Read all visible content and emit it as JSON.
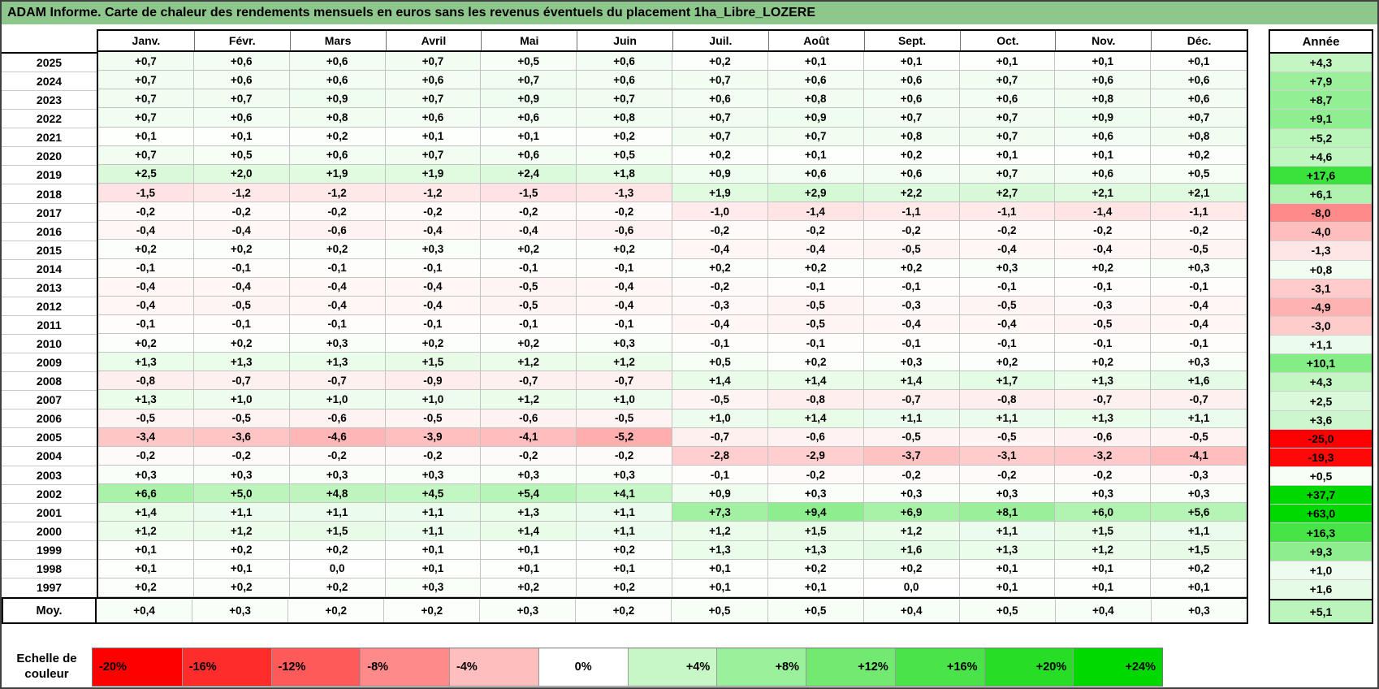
{
  "title": "ADAM Informe. Carte de chaleur des rendements mensuels en euros sans les revenus éventuels du placement 1ha_Libre_LOZERE",
  "annee_header": "Année",
  "legend": {
    "label_line1": "Echelle de",
    "label_line2": "couleur",
    "stops": [
      "-20%",
      "-16%",
      "-12%",
      "-8%",
      "-4%",
      "0%",
      "+4%",
      "+8%",
      "+12%",
      "+16%",
      "+20%",
      "+24%"
    ]
  },
  "colors": {
    "title_bg": "#8DC78B",
    "heat_negative_max": "#FF0000",
    "heat_zero": "#FFFFFF",
    "heat_positive_max": "#00D900"
  },
  "chart_data": {
    "type": "heatmap",
    "title": "ADAM Informe. Carte de chaleur des rendements mensuels en euros sans les revenus éventuels du placement 1ha_Libre_LOZERE",
    "columns": [
      "Janv.",
      "Févr.",
      "Mars",
      "Avril",
      "Mai",
      "Juin",
      "Juil.",
      "Août",
      "Sept.",
      "Oct.",
      "Nov.",
      "Déc."
    ],
    "annual_column_label": "Année",
    "rows": [
      {
        "year": "2025",
        "values": [
          "+0,7",
          "+0,6",
          "+0,6",
          "+0,7",
          "+0,5",
          "+0,6",
          "+0,2",
          "+0,1",
          "+0,1",
          "+0,1",
          "+0,1",
          "+0,1"
        ],
        "annual": "+4,3"
      },
      {
        "year": "2024",
        "values": [
          "+0,7",
          "+0,6",
          "+0,6",
          "+0,6",
          "+0,7",
          "+0,6",
          "+0,7",
          "+0,6",
          "+0,6",
          "+0,7",
          "+0,6",
          "+0,6"
        ],
        "annual": "+7,9"
      },
      {
        "year": "2023",
        "values": [
          "+0,7",
          "+0,7",
          "+0,9",
          "+0,7",
          "+0,9",
          "+0,7",
          "+0,6",
          "+0,8",
          "+0,6",
          "+0,6",
          "+0,8",
          "+0,6"
        ],
        "annual": "+8,7"
      },
      {
        "year": "2022",
        "values": [
          "+0,7",
          "+0,6",
          "+0,8",
          "+0,6",
          "+0,6",
          "+0,8",
          "+0,7",
          "+0,9",
          "+0,7",
          "+0,7",
          "+0,9",
          "+0,7"
        ],
        "annual": "+9,1"
      },
      {
        "year": "2021",
        "values": [
          "+0,1",
          "+0,1",
          "+0,2",
          "+0,1",
          "+0,1",
          "+0,2",
          "+0,7",
          "+0,7",
          "+0,8",
          "+0,7",
          "+0,6",
          "+0,8"
        ],
        "annual": "+5,2"
      },
      {
        "year": "2020",
        "values": [
          "+0,7",
          "+0,5",
          "+0,6",
          "+0,7",
          "+0,6",
          "+0,5",
          "+0,2",
          "+0,1",
          "+0,2",
          "+0,1",
          "+0,1",
          "+0,2"
        ],
        "annual": "+4,6"
      },
      {
        "year": "2019",
        "values": [
          "+2,5",
          "+2,0",
          "+1,9",
          "+1,9",
          "+2,4",
          "+1,8",
          "+0,9",
          "+0,6",
          "+0,6",
          "+0,7",
          "+0,6",
          "+0,5"
        ],
        "annual": "+17,6"
      },
      {
        "year": "2018",
        "values": [
          "-1,5",
          "-1,2",
          "-1,2",
          "-1,2",
          "-1,5",
          "-1,3",
          "+1,9",
          "+2,9",
          "+2,2",
          "+2,7",
          "+2,1",
          "+2,1"
        ],
        "annual": "+6,1"
      },
      {
        "year": "2017",
        "values": [
          "-0,2",
          "-0,2",
          "-0,2",
          "-0,2",
          "-0,2",
          "-0,2",
          "-1,0",
          "-1,4",
          "-1,1",
          "-1,1",
          "-1,4",
          "-1,1"
        ],
        "annual": "-8,0"
      },
      {
        "year": "2016",
        "values": [
          "-0,4",
          "-0,4",
          "-0,6",
          "-0,4",
          "-0,4",
          "-0,6",
          "-0,2",
          "-0,2",
          "-0,2",
          "-0,2",
          "-0,2",
          "-0,2"
        ],
        "annual": "-4,0"
      },
      {
        "year": "2015",
        "values": [
          "+0,2",
          "+0,2",
          "+0,2",
          "+0,3",
          "+0,2",
          "+0,2",
          "-0,4",
          "-0,4",
          "-0,5",
          "-0,4",
          "-0,4",
          "-0,5"
        ],
        "annual": "-1,3"
      },
      {
        "year": "2014",
        "values": [
          "-0,1",
          "-0,1",
          "-0,1",
          "-0,1",
          "-0,1",
          "-0,1",
          "+0,2",
          "+0,2",
          "+0,2",
          "+0,3",
          "+0,2",
          "+0,3"
        ],
        "annual": "+0,8"
      },
      {
        "year": "2013",
        "values": [
          "-0,4",
          "-0,4",
          "-0,4",
          "-0,4",
          "-0,5",
          "-0,4",
          "-0,2",
          "-0,1",
          "-0,1",
          "-0,1",
          "-0,1",
          "-0,1"
        ],
        "annual": "-3,1"
      },
      {
        "year": "2012",
        "values": [
          "-0,4",
          "-0,5",
          "-0,4",
          "-0,4",
          "-0,5",
          "-0,4",
          "-0,3",
          "-0,5",
          "-0,3",
          "-0,5",
          "-0,3",
          "-0,4"
        ],
        "annual": "-4,9"
      },
      {
        "year": "2011",
        "values": [
          "-0,1",
          "-0,1",
          "-0,1",
          "-0,1",
          "-0,1",
          "-0,1",
          "-0,4",
          "-0,5",
          "-0,4",
          "-0,4",
          "-0,5",
          "-0,4"
        ],
        "annual": "-3,0"
      },
      {
        "year": "2010",
        "values": [
          "+0,2",
          "+0,2",
          "+0,3",
          "+0,2",
          "+0,2",
          "+0,3",
          "-0,1",
          "-0,1",
          "-0,1",
          "-0,1",
          "-0,1",
          "-0,1"
        ],
        "annual": "+1,1"
      },
      {
        "year": "2009",
        "values": [
          "+1,3",
          "+1,3",
          "+1,3",
          "+1,5",
          "+1,2",
          "+1,2",
          "+0,5",
          "+0,2",
          "+0,3",
          "+0,2",
          "+0,2",
          "+0,3"
        ],
        "annual": "+10,1"
      },
      {
        "year": "2008",
        "values": [
          "-0,8",
          "-0,7",
          "-0,7",
          "-0,9",
          "-0,7",
          "-0,7",
          "+1,4",
          "+1,4",
          "+1,4",
          "+1,7",
          "+1,3",
          "+1,6"
        ],
        "annual": "+4,3"
      },
      {
        "year": "2007",
        "values": [
          "+1,3",
          "+1,0",
          "+1,0",
          "+1,0",
          "+1,2",
          "+1,0",
          "-0,5",
          "-0,8",
          "-0,7",
          "-0,8",
          "-0,7",
          "-0,7"
        ],
        "annual": "+2,5"
      },
      {
        "year": "2006",
        "values": [
          "-0,5",
          "-0,5",
          "-0,6",
          "-0,5",
          "-0,6",
          "-0,5",
          "+1,0",
          "+1,4",
          "+1,1",
          "+1,1",
          "+1,3",
          "+1,1"
        ],
        "annual": "+3,6"
      },
      {
        "year": "2005",
        "values": [
          "-3,4",
          "-3,6",
          "-4,6",
          "-3,9",
          "-4,1",
          "-5,2",
          "-0,7",
          "-0,6",
          "-0,5",
          "-0,5",
          "-0,6",
          "-0,5"
        ],
        "annual": "-25,0"
      },
      {
        "year": "2004",
        "values": [
          "-0,2",
          "-0,2",
          "-0,2",
          "-0,2",
          "-0,2",
          "-0,2",
          "-2,8",
          "-2,9",
          "-3,7",
          "-3,1",
          "-3,2",
          "-4,1"
        ],
        "annual": "-19,3"
      },
      {
        "year": "2003",
        "values": [
          "+0,3",
          "+0,3",
          "+0,3",
          "+0,3",
          "+0,3",
          "+0,3",
          "-0,1",
          "-0,2",
          "-0,2",
          "-0,2",
          "-0,2",
          "-0,3"
        ],
        "annual": "+0,5"
      },
      {
        "year": "2002",
        "values": [
          "+6,6",
          "+5,0",
          "+4,8",
          "+4,5",
          "+5,4",
          "+4,1",
          "+0,9",
          "+0,3",
          "+0,3",
          "+0,3",
          "+0,3",
          "+0,3"
        ],
        "annual": "+37,7"
      },
      {
        "year": "2001",
        "values": [
          "+1,4",
          "+1,1",
          "+1,1",
          "+1,1",
          "+1,3",
          "+1,1",
          "+7,3",
          "+9,4",
          "+6,9",
          "+8,1",
          "+6,0",
          "+5,6"
        ],
        "annual": "+63,0"
      },
      {
        "year": "2000",
        "values": [
          "+1,2",
          "+1,2",
          "+1,5",
          "+1,1",
          "+1,4",
          "+1,1",
          "+1,2",
          "+1,5",
          "+1,2",
          "+1,1",
          "+1,5",
          "+1,1"
        ],
        "annual": "+16,3"
      },
      {
        "year": "1999",
        "values": [
          "+0,1",
          "+0,2",
          "+0,2",
          "+0,1",
          "+0,1",
          "+0,2",
          "+1,3",
          "+1,3",
          "+1,6",
          "+1,3",
          "+1,2",
          "+1,5"
        ],
        "annual": "+9,3"
      },
      {
        "year": "1998",
        "values": [
          "+0,1",
          "+0,1",
          "0,0",
          "+0,1",
          "+0,1",
          "+0,1",
          "+0,1",
          "+0,2",
          "+0,2",
          "+0,1",
          "+0,1",
          "+0,2"
        ],
        "annual": "+1,0"
      },
      {
        "year": "1997",
        "values": [
          "+0,2",
          "+0,2",
          "+0,2",
          "+0,3",
          "+0,2",
          "+0,2",
          "+0,1",
          "+0,1",
          "0,0",
          "+0,1",
          "+0,1",
          "+0,1"
        ],
        "annual": "+1,6"
      }
    ],
    "average_row": {
      "label": "Moy.",
      "values": [
        "+0,4",
        "+0,3",
        "+0,2",
        "+0,2",
        "+0,3",
        "+0,2",
        "+0,5",
        "+0,5",
        "+0,4",
        "+0,5",
        "+0,4",
        "+0,3"
      ],
      "annual": "+5,1"
    },
    "color_scale": {
      "stops": [
        "-20%",
        "-16%",
        "-12%",
        "-8%",
        "-4%",
        "0%",
        "+4%",
        "+8%",
        "+12%",
        "+16%",
        "+20%",
        "+24%"
      ],
      "negative_max_color": "#FF0000",
      "zero_color": "#FFFFFF",
      "positive_max_color": "#00D900",
      "legend_position": "bottom"
    }
  }
}
